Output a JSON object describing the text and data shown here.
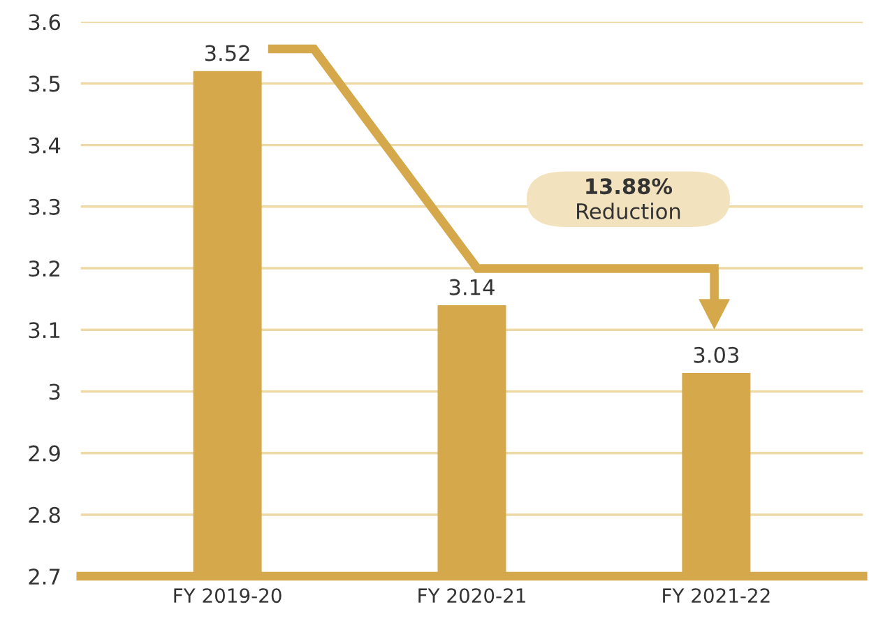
{
  "chart_data": {
    "type": "bar",
    "categories": [
      "FY 2019-20",
      "FY 2020-21",
      "FY 2021-22"
    ],
    "values": [
      3.52,
      3.14,
      3.03
    ],
    "color": "#d4a84b",
    "ylim": [
      2.7,
      3.6
    ],
    "yticks": [
      2.7,
      2.8,
      2.9,
      3,
      3.1,
      3.2,
      3.3,
      3.4,
      3.5,
      3.6
    ],
    "grid": "y",
    "data_labels": true,
    "annotations": [
      "13.88%",
      "Reduction"
    ]
  }
}
